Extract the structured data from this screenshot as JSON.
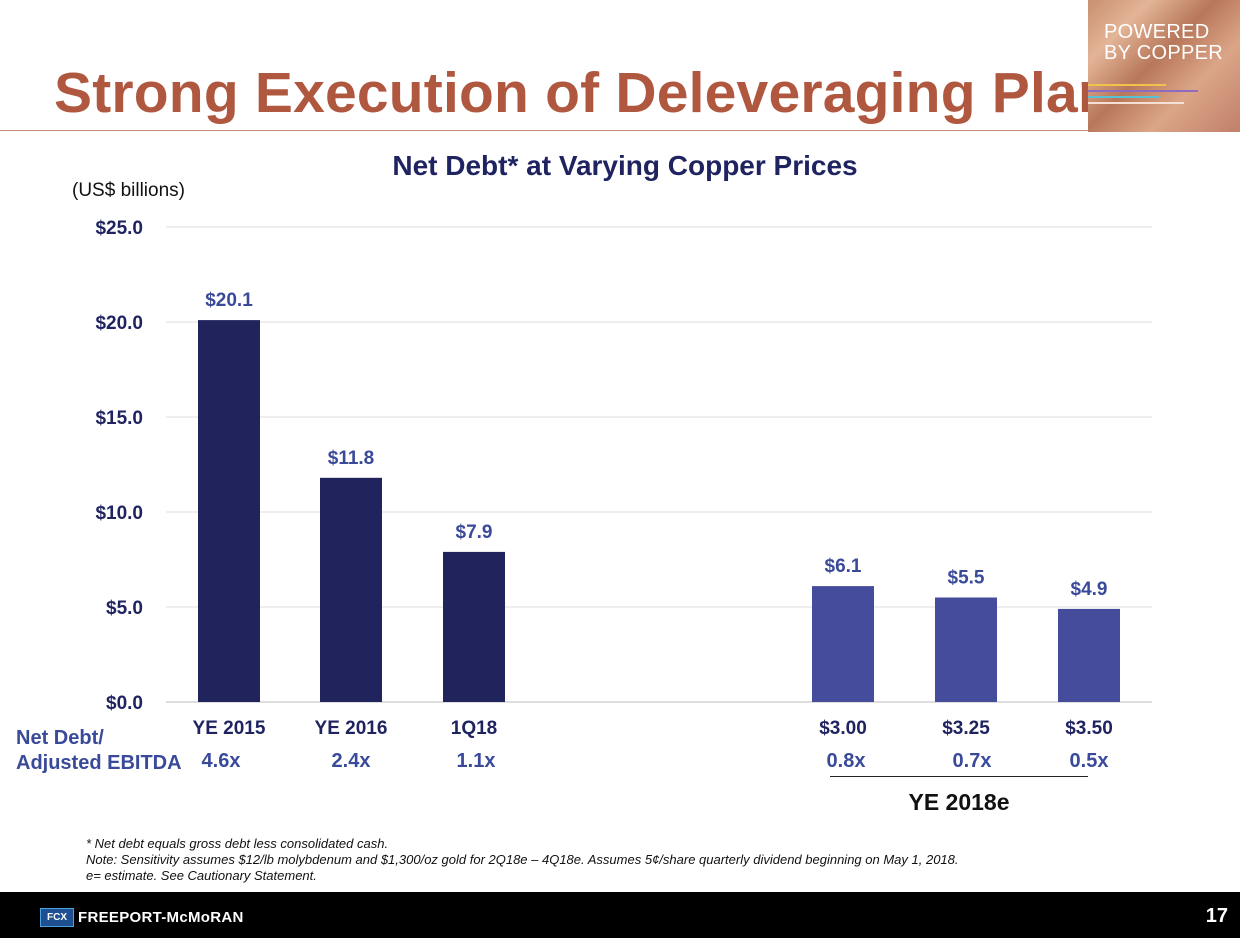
{
  "slide": {
    "title": "Strong Execution of Deleveraging Plan",
    "brand_line1": "POWERED",
    "brand_line2": "BY COPPER",
    "page_number": "17",
    "company": "FREEPORT-McMoRAN",
    "logo_text": "FCX"
  },
  "chart_data": {
    "type": "bar",
    "title": "Net Debt* at Varying Copper Prices",
    "unit_label": "(US$ billions)",
    "xlabel": "",
    "ylabel": "",
    "ylim": [
      0,
      25
    ],
    "grid": true,
    "y_ticks": [
      "$25.0",
      "$20.0",
      "$15.0",
      "$10.0",
      "$5.0",
      "$0.0"
    ],
    "y_tick_values": [
      25,
      20,
      15,
      10,
      5,
      0
    ],
    "categories": [
      "YE 2015",
      "YE 2016",
      "1Q18",
      "$3.00",
      "$3.25",
      "$3.50"
    ],
    "values": [
      20.1,
      11.8,
      7.9,
      6.1,
      5.5,
      4.9
    ],
    "value_labels": [
      "$20.1",
      "$11.8",
      "$7.9",
      "$6.1",
      "$5.5",
      "$4.9"
    ],
    "series_groups": [
      "actual",
      "actual",
      "actual",
      "estimate",
      "estimate",
      "estimate"
    ],
    "ratio_label_line1": "Net Debt/",
    "ratio_label_line2": "Adjusted EBITDA",
    "ratios": [
      "4.6x",
      "2.4x",
      "1.1x",
      "0.8x",
      "0.7x",
      "0.5x"
    ],
    "group_label": "YE 2018e"
  },
  "colors": {
    "actual_bar": "#20235c",
    "estimate_bar": "#454c9c",
    "value_label": "#3a4a9a",
    "grid": "#dcdcdc",
    "title_text": "#b0583f"
  },
  "footnotes": {
    "line1": "* Net debt equals gross debt less consolidated cash.",
    "line2": "Note: Sensitivity assumes $12/lb molybdenum and $1,300/oz gold for 2Q18e – 4Q18e. Assumes 5¢/share quarterly dividend beginning on May 1, 2018.",
    "line3": "e= estimate. See Cautionary Statement."
  }
}
